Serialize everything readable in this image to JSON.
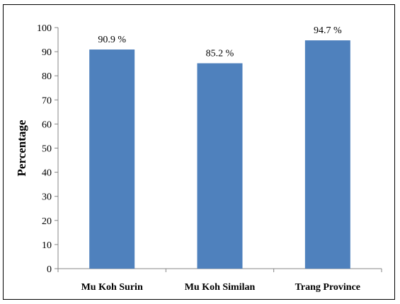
{
  "chart_data": {
    "type": "bar",
    "categories": [
      "Mu Koh Surin",
      "Mu Koh Similan",
      "Trang Province"
    ],
    "values": [
      90.9,
      85.2,
      94.7
    ],
    "data_labels": [
      "90.9 %",
      "85.2 %",
      "94.7 %"
    ],
    "title": "",
    "xlabel": "",
    "ylabel": "Percentage",
    "ylim": [
      0,
      100
    ],
    "yticks": [
      0,
      10,
      20,
      30,
      40,
      50,
      60,
      70,
      80,
      90,
      100
    ],
    "grid": false,
    "legend": "none",
    "bar_color": "#4F81BD"
  }
}
